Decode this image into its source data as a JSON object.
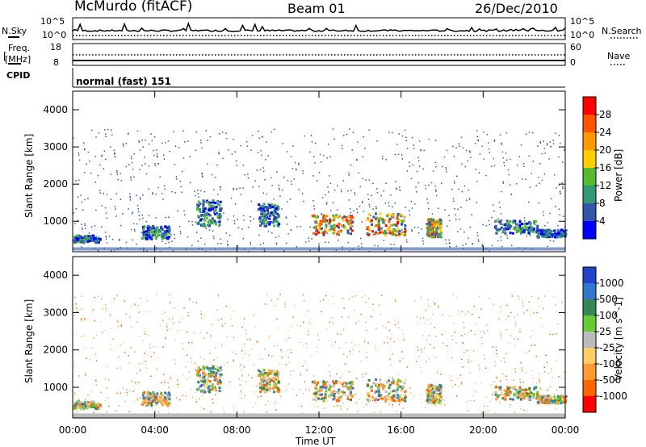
{
  "header": {
    "station": "McMurdo (fitACF)",
    "beam": "Beam 01",
    "date": "26/Dec/2010"
  },
  "top_panels": {
    "nsky_label": "N.Sky",
    "nsky_top": "10^5",
    "nsky_bottom": "10^0",
    "nsearch_label": "N.Search",
    "nsearch_top": "10^5",
    "nsearch_bottom": "10^0",
    "freq_label": "Freq.",
    "freq_unit": "[MHz]",
    "freq_top": "18",
    "freq_bottom": "8",
    "nave_label": "Nave",
    "nave_top": "60",
    "nave_bottom": "0",
    "cpid_label": "CPID",
    "cpid_value": "normal (fast) 151"
  },
  "chart_data": [
    {
      "type": "heatmap",
      "name": "power",
      "ylabel": "Slant Range [km]",
      "ylim": [
        180,
        4500
      ],
      "yticks": [
        "1000",
        "2000",
        "3000",
        "4000"
      ],
      "xticks": [
        "00:00",
        "04:00",
        "08:00",
        "12:00",
        "16:00",
        "20:00",
        "00:00"
      ],
      "colorbar_label": "Power [dB]",
      "colorbar_ticks": [
        "28",
        "24",
        "20",
        "16",
        "12",
        "8",
        "4"
      ],
      "colorbar_colors": [
        "#ff0000",
        "#ff5500",
        "#ff9900",
        "#ffcc00",
        "#55bb33",
        "#339977",
        "#3355aa",
        "#0000ff"
      ],
      "echo_regions": [
        {
          "t_start": 0.0,
          "t_end": 1.3,
          "range_low": 450,
          "range_high": 650,
          "level": "medium"
        },
        {
          "t_start": 3.3,
          "t_end": 4.7,
          "range_low": 550,
          "range_high": 900,
          "level": "medium"
        },
        {
          "t_start": 6.0,
          "t_end": 7.2,
          "range_low": 900,
          "range_high": 1600,
          "level": "medium"
        },
        {
          "t_start": 9.0,
          "t_end": 10.0,
          "range_low": 900,
          "range_high": 1500,
          "level": "medium"
        },
        {
          "t_start": 11.6,
          "t_end": 13.6,
          "range_low": 650,
          "range_high": 1200,
          "level": "high"
        },
        {
          "t_start": 14.3,
          "t_end": 16.2,
          "range_low": 650,
          "range_high": 1250,
          "level": "high"
        },
        {
          "t_start": 17.2,
          "t_end": 17.9,
          "range_low": 600,
          "range_high": 1100,
          "level": "high"
        },
        {
          "t_start": 20.5,
          "t_end": 22.6,
          "range_low": 700,
          "range_high": 1050,
          "level": "medium"
        },
        {
          "t_start": 22.6,
          "t_end": 24.0,
          "range_low": 600,
          "range_high": 800,
          "level": "low"
        }
      ]
    },
    {
      "type": "heatmap",
      "name": "velocity",
      "ylabel": "Slant Range [km]",
      "xlabel": "Time UT",
      "ylim": [
        180,
        4500
      ],
      "yticks": [
        "1000",
        "2000",
        "3000",
        "4000"
      ],
      "xticks": [
        "00:00",
        "04:00",
        "08:00",
        "12:00",
        "16:00",
        "20:00",
        "00:00"
      ],
      "colorbar_label": "Velocity [m s^-1]",
      "colorbar_ticks": [
        "1000",
        "500",
        "100",
        "25",
        "-25",
        "-100",
        "-500",
        "-1000"
      ],
      "colorbar_colors": [
        "#2244cc",
        "#3377cc",
        "#338855",
        "#66cc33",
        "#bbbbbb",
        "#ffcc66",
        "#ff9933",
        "#ff6600",
        "#ff0000"
      ]
    }
  ]
}
